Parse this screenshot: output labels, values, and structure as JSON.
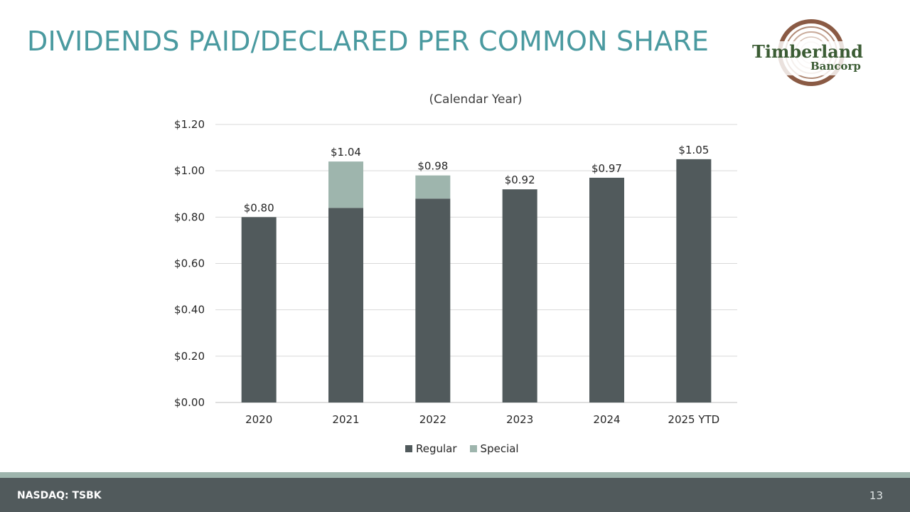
{
  "slide": {
    "title": "DIVIDENDS PAID/DECLARED PER COMMON SHARE",
    "logo_line1": "Timberland",
    "logo_line2": "Bancorp",
    "footer_ticker": "NASDAQ: TSBK",
    "page_number": "13"
  },
  "colors": {
    "title": "#4a9aa0",
    "regular": "#515a5c",
    "special": "#9eb5ad",
    "footer": "#515a5c"
  },
  "chart_data": {
    "type": "bar",
    "stacked": true,
    "title": "(Calendar Year)",
    "categories": [
      "2020",
      "2021",
      "2022",
      "2023",
      "2024",
      "2025 YTD"
    ],
    "series": [
      {
        "name": "Regular",
        "values": [
          0.8,
          0.84,
          0.88,
          0.92,
          0.97,
          1.05
        ]
      },
      {
        "name": "Special",
        "values": [
          0,
          0.2,
          0.1,
          0,
          0,
          0
        ]
      }
    ],
    "total_labels": [
      "$0.80",
      "$1.04",
      "$0.98",
      "$0.92",
      "$0.97",
      "$1.05"
    ],
    "ylim": [
      0,
      1.2
    ],
    "y_ticks": [
      0,
      0.2,
      0.4,
      0.6,
      0.8,
      1.0,
      1.2
    ],
    "y_tick_labels": [
      "$0.00",
      "$0.20",
      "$0.40",
      "$0.60",
      "$0.80",
      "$1.00",
      "$1.20"
    ],
    "xlabel": "",
    "ylabel": "",
    "grid": true,
    "legend_position": "bottom"
  }
}
